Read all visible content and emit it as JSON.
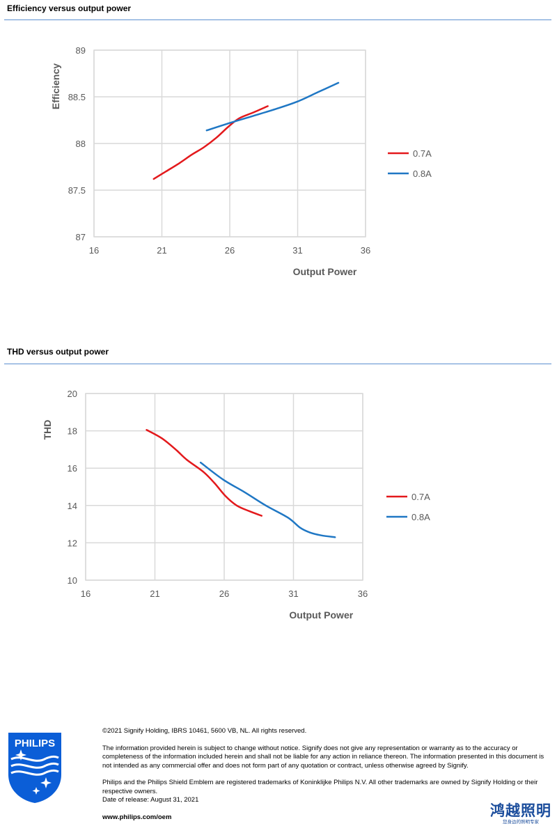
{
  "sections": {
    "efficiency_title": "Efficiency versus output power",
    "thd_title": "THD versus output power"
  },
  "chart_data": [
    {
      "type": "line",
      "title": "",
      "xlabel": "Output Power",
      "ylabel": "Efficiency",
      "xlim": [
        16,
        36
      ],
      "ylim": [
        87,
        89
      ],
      "xticks": [
        "16",
        "21",
        "26",
        "31",
        "36"
      ],
      "yticks": [
        "87",
        "87.5",
        "88",
        "88.5",
        "89"
      ],
      "grid": true,
      "legend": "right",
      "series": [
        {
          "name": "0.7A",
          "color": "#e3191c",
          "x": [
            20.4,
            21.3,
            22.3,
            23.2,
            24.1,
            25.0,
            25.9,
            26.7,
            27.7,
            28.8
          ],
          "y": [
            87.62,
            87.7,
            87.79,
            87.88,
            87.96,
            88.06,
            88.18,
            88.27,
            88.33,
            88.4
          ]
        },
        {
          "name": "0.8A",
          "color": "#1f77c4",
          "x": [
            24.3,
            26.0,
            27.6,
            29.4,
            31.0,
            32.5,
            34.0
          ],
          "y": [
            88.14,
            88.22,
            88.29,
            88.37,
            88.45,
            88.55,
            88.65
          ]
        }
      ]
    },
    {
      "type": "line",
      "title": "",
      "xlabel": "Output Power",
      "ylabel": "THD",
      "xlim": [
        16,
        36
      ],
      "ylim": [
        10,
        20
      ],
      "xticks": [
        "16",
        "21",
        "26",
        "31",
        "36"
      ],
      "yticks": [
        "10",
        "12",
        "14",
        "16",
        "18",
        "20"
      ],
      "grid": true,
      "legend": "right",
      "series": [
        {
          "name": "0.7A",
          "color": "#e3191c",
          "x": [
            20.4,
            21.5,
            22.5,
            23.3,
            24.5,
            25.3,
            26.1,
            26.9,
            27.8,
            28.7
          ],
          "y": [
            18.05,
            17.6,
            17.0,
            16.45,
            15.8,
            15.2,
            14.5,
            14.0,
            13.7,
            13.45
          ]
        },
        {
          "name": "0.8A",
          "color": "#1f77c4",
          "x": [
            24.3,
            25.9,
            27.5,
            29.0,
            30.6,
            31.5,
            32.2,
            33.0,
            34.0
          ],
          "y": [
            16.3,
            15.4,
            14.7,
            14.0,
            13.35,
            12.8,
            12.55,
            12.4,
            12.3
          ]
        }
      ]
    }
  ],
  "footer": {
    "copyright": "©2021 Signify Holding, IBRS 10461, 5600 VB, NL. All rights reserved.",
    "disclaimer": "The information provided herein is subject to change without notice. Signify does not give any representation or warranty as to the accuracy or completeness of the information included herein and shall not be liable for any action in reliance thereon. The information presented in this document is not intended as any commercial offer and does not form part of any quotation or contract, unless otherwise agreed by Signify.",
    "trademarks": "Philips and the Philips Shield Emblem are registered trademarks of Koninklijke Philips N.V. All other trademarks are owned by Signify Holding or their respective owners.",
    "release_date": "Date of release: August 31, 2021",
    "url": "www.philips.com/oem"
  },
  "logo": {
    "text": "PHILIPS",
    "icon": "philips-shield-icon",
    "color": "#0b5ed7"
  },
  "brand_cn": {
    "name": "鸿越照明",
    "tagline": "您身边的照明专家",
    "color": "#1b4d9c"
  }
}
